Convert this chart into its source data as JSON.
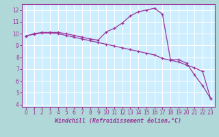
{
  "xlabel": "Windchill (Refroidissement éolien,°C)",
  "x_values": [
    0,
    1,
    2,
    3,
    4,
    5,
    6,
    7,
    8,
    9,
    10,
    11,
    12,
    13,
    14,
    15,
    16,
    17,
    18,
    19,
    20,
    21,
    22,
    23
  ],
  "line1_y": [
    9.8,
    10.0,
    10.1,
    10.1,
    10.1,
    10.0,
    9.85,
    9.7,
    9.55,
    9.45,
    10.15,
    10.45,
    10.9,
    11.5,
    11.85,
    12.0,
    12.15,
    11.65,
    7.8,
    7.8,
    7.5,
    6.5,
    5.6,
    4.5
  ],
  "line2_y": [
    9.8,
    9.95,
    10.05,
    10.05,
    10.0,
    9.85,
    9.7,
    9.55,
    9.4,
    9.25,
    9.1,
    8.95,
    8.8,
    8.65,
    8.5,
    8.35,
    8.2,
    7.9,
    7.75,
    7.6,
    7.35,
    7.1,
    6.8,
    4.5
  ],
  "line_color": "#993399",
  "bg_color": "#b0d8d8",
  "plot_bg_color": "#cceeff",
  "grid_color": "#ffffff",
  "axis_color": "#993399",
  "ylim": [
    3.8,
    12.5
  ],
  "xlim": [
    -0.5,
    23.5
  ],
  "yticks": [
    4,
    5,
    6,
    7,
    8,
    9,
    10,
    11,
    12
  ],
  "xticks": [
    0,
    1,
    2,
    3,
    4,
    5,
    6,
    7,
    8,
    9,
    10,
    11,
    12,
    13,
    14,
    15,
    16,
    17,
    18,
    19,
    20,
    21,
    22,
    23
  ],
  "xlabel_fontsize": 6.0,
  "tick_fontsize": 5.5
}
